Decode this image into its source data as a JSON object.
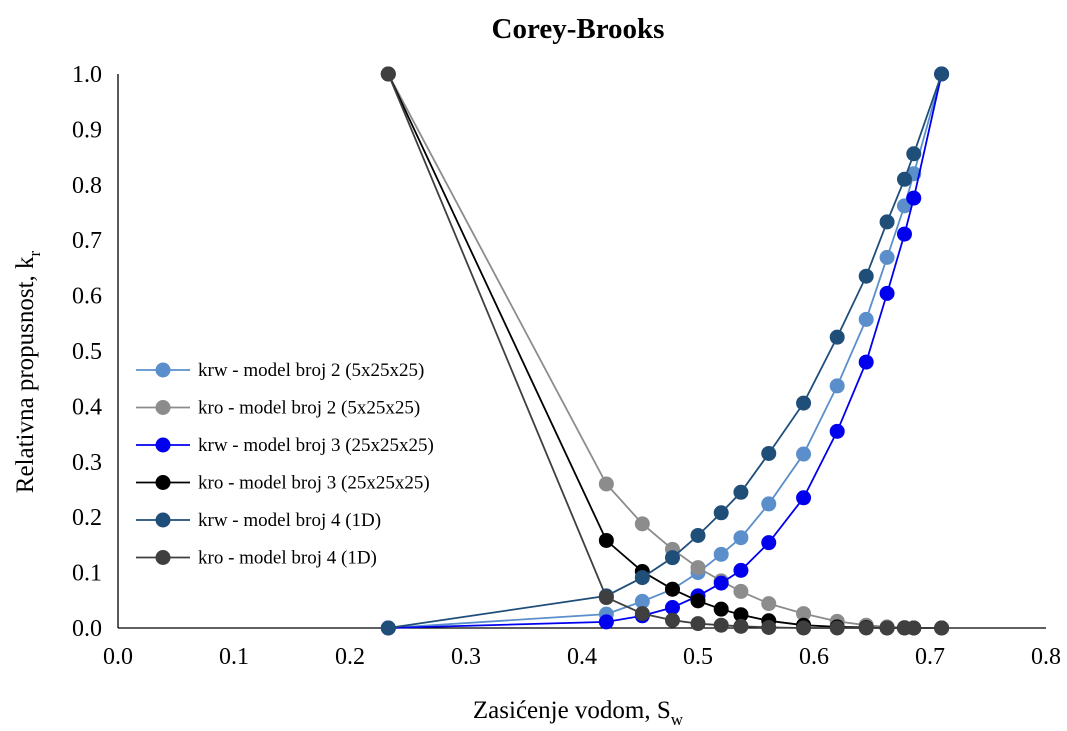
{
  "chart_data": {
    "type": "line",
    "title": "Corey-Brooks",
    "xlabel": {
      "main": "Zasićenje vodom, S",
      "sub": "w"
    },
    "ylabel": {
      "main": "Relativna propusnost, k",
      "sub": "r"
    },
    "xlim": [
      0.0,
      0.8
    ],
    "ylim": [
      0.0,
      1.0
    ],
    "xticks": [
      "0.0",
      "0.1",
      "0.2",
      "0.3",
      "0.4",
      "0.5",
      "0.6",
      "0.7",
      "0.8"
    ],
    "yticks": [
      "0.0",
      "0.1",
      "0.2",
      "0.3",
      "0.4",
      "0.5",
      "0.6",
      "0.7",
      "0.8",
      "0.9",
      "1.0"
    ],
    "grid": false,
    "legend_position": "left",
    "series": [
      {
        "name": "krw - model broj 2 (5x25x25)",
        "color": "#5b8fcc",
        "x": [
          0.233,
          0.421,
          0.452,
          0.478,
          0.5,
          0.52,
          0.537,
          0.561,
          0.591,
          0.62,
          0.645,
          0.663,
          0.678,
          0.686,
          0.71
        ],
        "y": [
          0.0,
          0.025,
          0.048,
          0.07,
          0.1,
          0.133,
          0.163,
          0.224,
          0.314,
          0.437,
          0.557,
          0.669,
          0.762,
          0.82,
          1.0
        ]
      },
      {
        "name": "kro - model broj 2 (5x25x25)",
        "color": "#8c8c8c",
        "x": [
          0.233,
          0.421,
          0.452,
          0.478,
          0.5,
          0.52,
          0.537,
          0.561,
          0.591,
          0.62,
          0.645,
          0.663,
          0.678,
          0.686,
          0.71
        ],
        "y": [
          1.0,
          0.26,
          0.188,
          0.142,
          0.109,
          0.085,
          0.066,
          0.044,
          0.026,
          0.012,
          0.005,
          0.002,
          0.001,
          0.0,
          0.0
        ]
      },
      {
        "name": "krw - model broj 3 (25x25x25)",
        "color": "#0000ee",
        "x": [
          0.233,
          0.421,
          0.452,
          0.478,
          0.5,
          0.52,
          0.537,
          0.561,
          0.591,
          0.62,
          0.645,
          0.663,
          0.678,
          0.686,
          0.71
        ],
        "y": [
          0.0,
          0.011,
          0.022,
          0.037,
          0.058,
          0.081,
          0.104,
          0.154,
          0.235,
          0.355,
          0.48,
          0.604,
          0.711,
          0.776,
          1.0
        ]
      },
      {
        "name": "kro - model broj 3 (25x25x25)",
        "color": "#000000",
        "x": [
          0.233,
          0.421,
          0.452,
          0.478,
          0.5,
          0.52,
          0.537,
          0.561,
          0.591,
          0.62,
          0.645,
          0.663,
          0.678,
          0.686,
          0.71
        ],
        "y": [
          1.0,
          0.158,
          0.102,
          0.07,
          0.049,
          0.034,
          0.024,
          0.013,
          0.005,
          0.002,
          0.001,
          0.0,
          0.0,
          0.0,
          0.0
        ]
      },
      {
        "name": "krw - model broj 4 (1D)",
        "color": "#1f4e79",
        "x": [
          0.233,
          0.421,
          0.452,
          0.478,
          0.5,
          0.52,
          0.537,
          0.561,
          0.591,
          0.62,
          0.645,
          0.663,
          0.678,
          0.686,
          0.71
        ],
        "y": [
          0.0,
          0.058,
          0.091,
          0.127,
          0.167,
          0.208,
          0.245,
          0.315,
          0.406,
          0.525,
          0.635,
          0.733,
          0.81,
          0.856,
          1.0
        ]
      },
      {
        "name": "kro - model broj 4 (1D)",
        "color": "#3f3f3f",
        "x": [
          0.233,
          0.421,
          0.452,
          0.478,
          0.5,
          0.52,
          0.537,
          0.561,
          0.591,
          0.62,
          0.645,
          0.663,
          0.678,
          0.686,
          0.71
        ],
        "y": [
          1.0,
          0.055,
          0.026,
          0.014,
          0.008,
          0.005,
          0.003,
          0.001,
          0.0,
          0.0,
          0.0,
          0.0,
          0.0,
          0.0,
          0.0
        ]
      }
    ]
  }
}
